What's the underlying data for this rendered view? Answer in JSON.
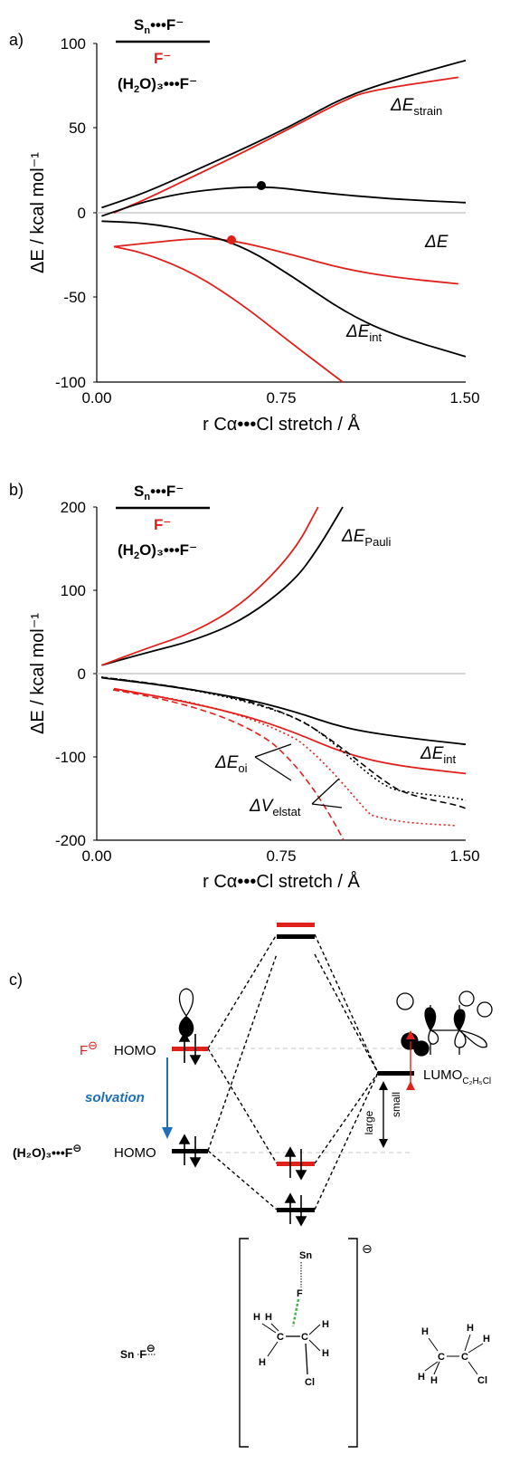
{
  "panel_a": {
    "label": "a)",
    "legend": {
      "line1": "S",
      "line1_sub": "n",
      "line1_rest": "•••F⁻",
      "line2": "F⁻",
      "line3_pre": "(H",
      "line3_sub": "2",
      "line3_post": "O)₃•••F⁻"
    },
    "ylabel": "ΔE / kcal mol⁻¹",
    "xlabel": "r Cα•••Cl stretch / Å",
    "yticks": [
      "100",
      "50",
      "0",
      "-50",
      "-100"
    ],
    "xticks": [
      "0.00",
      "0.75",
      "1.50"
    ],
    "annot_strain": "ΔE",
    "annot_strain_sub": "strain",
    "annot_total": "ΔE",
    "annot_int": "ΔE",
    "annot_int_sub": "int"
  },
  "panel_b": {
    "label": "b)",
    "ylabel": "ΔE / kcal mol⁻¹",
    "xlabel": "r Cα•••Cl stretch / Å",
    "yticks": [
      "200",
      "100",
      "0",
      "-100",
      "-200"
    ],
    "xticks": [
      "0.00",
      "0.75",
      "1.50"
    ],
    "annot_pauli": "ΔE",
    "annot_pauli_sub": "Pauli",
    "annot_int": "ΔE",
    "annot_int_sub": "int",
    "annot_oi": "ΔE",
    "annot_oi_sub": "oi",
    "annot_elstat": "ΔV",
    "annot_elstat_sub": "elstat"
  },
  "panel_c": {
    "label": "c)",
    "f_label": "F",
    "homo": "HOMO",
    "solvation": "solvation",
    "solv_label": "(H₂O)₃•••F",
    "lumo": "LUMO",
    "lumo_sub": "C₂H₅Cl",
    "small": "small",
    "large": "large",
    "minus": "⊖",
    "sn_f": "Sn",
    "sn_f_rest": "F",
    "ts_sn": "Sn",
    "ts_f": "F",
    "ts_cl": "Cl",
    "ts_c": "C",
    "ts_h": "H",
    "prod_c": "C",
    "prod_h": "H",
    "prod_cl": "Cl"
  },
  "colors": {
    "black": "#000000",
    "red": "#e0201b",
    "blue": "#1f6fb8",
    "grey": "#c8c8c8",
    "green": "#4caf50"
  },
  "chart_data": [
    {
      "type": "line",
      "x_range": [
        0.0,
        1.5
      ],
      "ylim": [
        -100,
        100
      ],
      "series": [
        {
          "name": "ΔEstrain",
          "color": "black",
          "x": [
            0.02,
            0.2,
            0.4,
            0.6,
            0.8,
            1.0,
            1.2,
            1.5
          ],
          "y": [
            3,
            12,
            25,
            38,
            52,
            68,
            78,
            90
          ]
        },
        {
          "name": "ΔEstrain",
          "color": "red",
          "x": [
            0.07,
            0.2,
            0.4,
            0.6,
            0.8,
            1.0,
            1.1,
            1.47
          ],
          "y": [
            0,
            8,
            22,
            36,
            51,
            66,
            72,
            80
          ]
        },
        {
          "name": "ΔE",
          "color": "black",
          "x": [
            0.02,
            0.2,
            0.4,
            0.67,
            0.9,
            1.2,
            1.5
          ],
          "y": [
            -2,
            7,
            13,
            16,
            12,
            8,
            6
          ]
        },
        {
          "name": "ΔE",
          "color": "red",
          "x": [
            0.07,
            0.2,
            0.4,
            0.55,
            0.8,
            1.0,
            1.2,
            1.47
          ],
          "y": [
            -20,
            -18,
            -15,
            -16,
            -25,
            -33,
            -38,
            -42
          ]
        },
        {
          "name": "ΔEint",
          "color": "black",
          "x": [
            0.02,
            0.2,
            0.4,
            0.6,
            0.8,
            1.0,
            1.2,
            1.5
          ],
          "y": [
            -5,
            -6,
            -11,
            -20,
            -38,
            -58,
            -72,
            -85
          ]
        },
        {
          "name": "ΔEint",
          "color": "red",
          "x": [
            0.07,
            0.2,
            0.4,
            0.6,
            0.8,
            1.0
          ],
          "y": [
            -20,
            -24,
            -36,
            -55,
            -78,
            -100
          ]
        }
      ]
    },
    {
      "type": "line",
      "x_range": [
        0.0,
        1.5
      ],
      "ylim": [
        -200,
        200
      ],
      "series": [
        {
          "name": "ΔEPauli",
          "color": "black",
          "x": [
            0.02,
            0.2,
            0.4,
            0.6,
            0.8,
            0.9,
            1.0
          ],
          "y": [
            10,
            25,
            40,
            65,
            110,
            150,
            200
          ]
        },
        {
          "name": "ΔEPauli",
          "color": "red",
          "x": [
            0.02,
            0.2,
            0.4,
            0.6,
            0.8,
            0.9
          ],
          "y": [
            10,
            30,
            50,
            85,
            145,
            200
          ]
        },
        {
          "name": "ΔEint",
          "color": "black",
          "x": [
            0.02,
            0.3,
            0.6,
            0.8,
            1.0,
            1.2,
            1.5
          ],
          "y": [
            -5,
            -15,
            -30,
            -45,
            -65,
            -75,
            -85
          ]
        },
        {
          "name": "ΔEint",
          "color": "red",
          "x": [
            0.07,
            0.3,
            0.6,
            0.8,
            1.0,
            1.2,
            1.5
          ],
          "y": [
            -18,
            -30,
            -50,
            -70,
            -95,
            -110,
            -120
          ]
        }
      ]
    }
  ]
}
